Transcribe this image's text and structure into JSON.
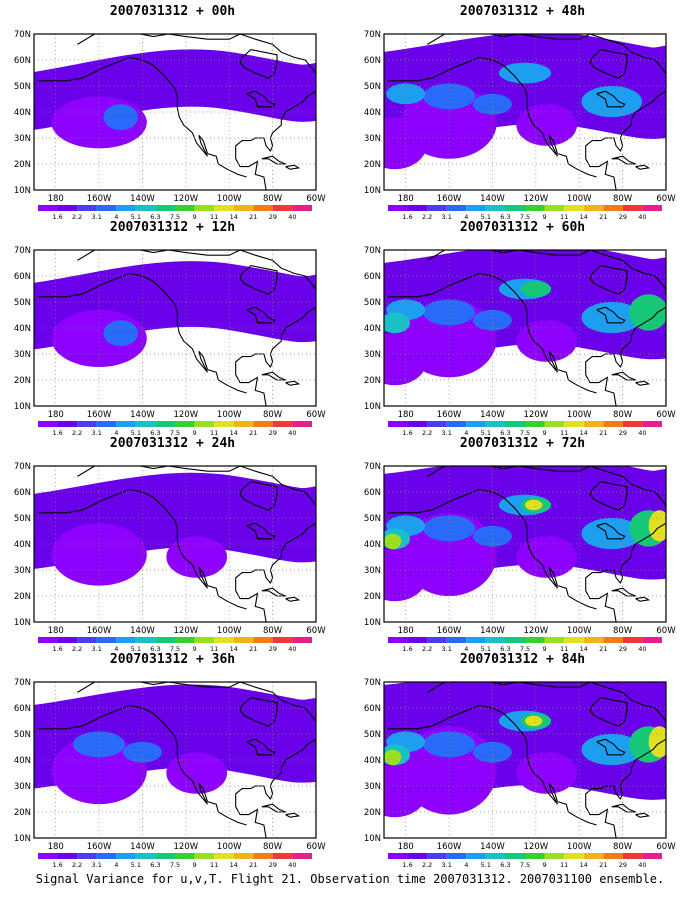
{
  "footer": "Signal Variance for u,v,T. Flight 21. Observation time 2007031312. 2007031100 ensemble.",
  "x_ticks": [
    "180",
    "160W",
    "140W",
    "120W",
    "100W",
    "80W",
    "60W"
  ],
  "y_ticks": [
    "10N",
    "20N",
    "30N",
    "40N",
    "50N",
    "60N",
    "70N"
  ],
  "legend_labels": [
    "1.6",
    "2.2",
    "3.1",
    "4",
    "5.1",
    "6.3",
    "7.5",
    "9",
    "11",
    "14",
    "21",
    "29",
    "40"
  ],
  "legend_colors": [
    "#8d00ff",
    "#6a00ea",
    "#4a3cf0",
    "#2a6af8",
    "#1c9ff0",
    "#18c0c8",
    "#14c878",
    "#38d030",
    "#98e020",
    "#e0e020",
    "#f0b418",
    "#f07c18",
    "#f03838",
    "#e8208c"
  ],
  "panels": [
    {
      "title": "2007031312 + 00h",
      "col": 0,
      "row": 0,
      "intensity": 0
    },
    {
      "title": "2007031312 + 12h",
      "col": 0,
      "row": 1,
      "intensity": 1
    },
    {
      "title": "2007031312 + 24h",
      "col": 0,
      "row": 2,
      "intensity": 2
    },
    {
      "title": "2007031312 + 36h",
      "col": 0,
      "row": 3,
      "intensity": 3
    },
    {
      "title": "2007031312 + 48h",
      "col": 1,
      "row": 0,
      "intensity": 4
    },
    {
      "title": "2007031312 + 60h",
      "col": 1,
      "row": 1,
      "intensity": 5
    },
    {
      "title": "2007031312 + 72h",
      "col": 1,
      "row": 2,
      "intensity": 6
    },
    {
      "title": "2007031312 + 84h",
      "col": 1,
      "row": 3,
      "intensity": 7
    }
  ]
}
